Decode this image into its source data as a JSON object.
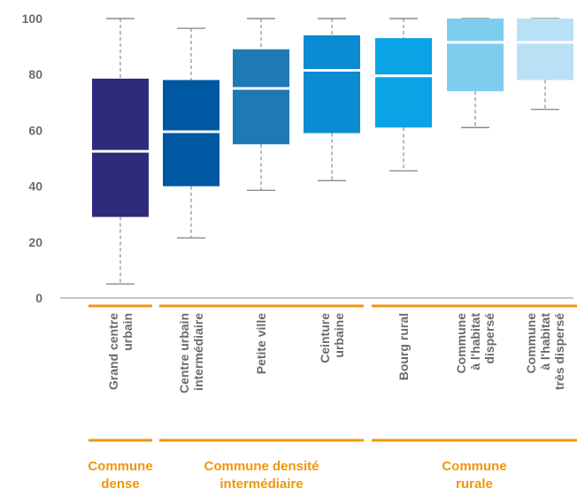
{
  "chart_data": {
    "type": "box",
    "ylim": [
      0,
      100
    ],
    "yticks": [
      0,
      20,
      40,
      60,
      80,
      100
    ],
    "grid": false,
    "categories": [
      {
        "label_lines": [
          "Grand centre",
          "urbain"
        ],
        "min": 5,
        "q1": 29,
        "median": 52.5,
        "q3": 78.5,
        "max": 100,
        "color": "#2e2a7c"
      },
      {
        "label_lines": [
          "Centre urbain",
          "intermédiaire"
        ],
        "min": 21.5,
        "q1": 40,
        "median": 59.5,
        "q3": 78,
        "max": 96.5,
        "color": "#0058a3"
      },
      {
        "label_lines": [
          "Petite ville"
        ],
        "min": 38.5,
        "q1": 55,
        "median": 75,
        "q3": 89,
        "max": 100,
        "color": "#1f79b5"
      },
      {
        "label_lines": [
          "Ceinture",
          "urbaine"
        ],
        "min": 42,
        "q1": 59,
        "median": 81.5,
        "q3": 94,
        "max": 100,
        "color": "#0a8bd2"
      },
      {
        "label_lines": [
          "Bourg rural"
        ],
        "min": 45.5,
        "q1": 61,
        "median": 79.5,
        "q3": 93,
        "max": 100,
        "color": "#0aa3e6"
      },
      {
        "label_lines": [
          "Commune",
          "à l'habitat",
          "dispersé"
        ],
        "min": 61,
        "q1": 74,
        "median": 91.5,
        "q3": 100,
        "max": 100,
        "color": "#7fcdee"
      },
      {
        "label_lines": [
          "Commune",
          "à l'habitat",
          "très dispersé"
        ],
        "min": 67.5,
        "q1": 78,
        "median": 91.5,
        "q3": 100,
        "max": 100,
        "color": "#b8e1f6"
      }
    ],
    "groups": [
      {
        "label_lines": [
          "Commune",
          "dense"
        ],
        "from": 0,
        "to": 0
      },
      {
        "label_lines": [
          "Commune densité",
          "intermédiaire"
        ],
        "from": 1,
        "to": 3
      },
      {
        "label_lines": [
          "Commune",
          "rurale"
        ],
        "from": 4,
        "to": 6
      }
    ],
    "colors": {
      "axis": "#8c8c8c",
      "whisker": "#8c8c8c",
      "median": "#ffffff",
      "group_line": "#f0960f",
      "text": "#6b6b6b",
      "group_text": "#f0960f"
    }
  }
}
